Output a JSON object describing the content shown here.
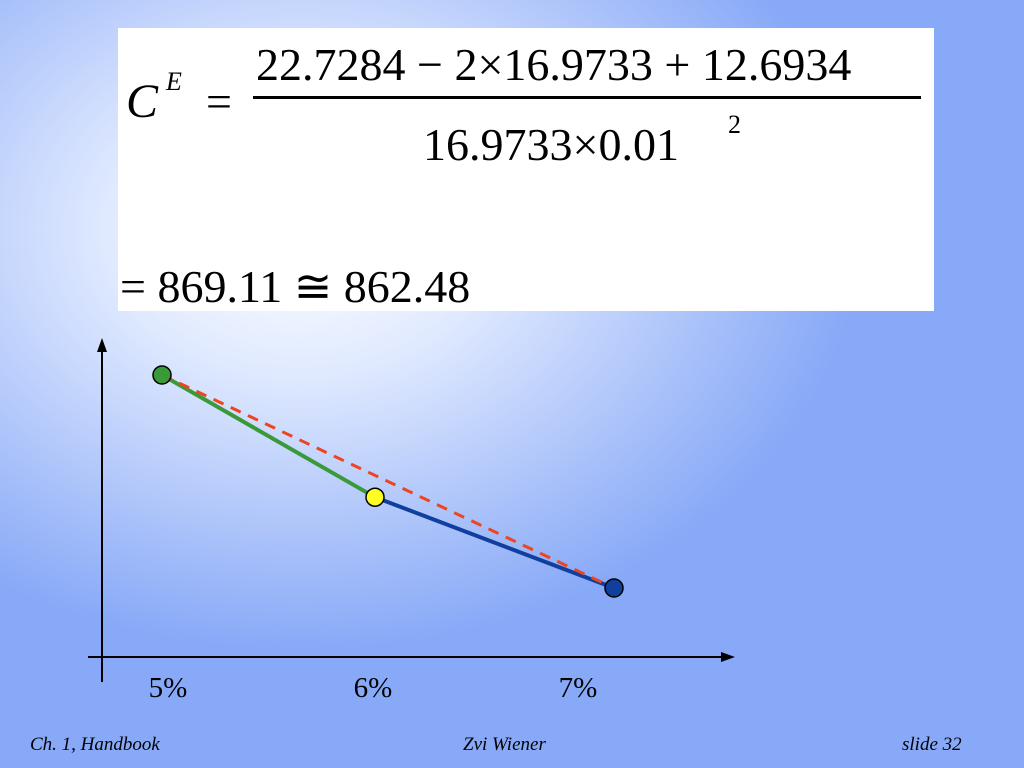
{
  "formula": {
    "lhs_symbol": "C",
    "lhs_superscript": "E",
    "equals": "=",
    "numerator": "22.7284 − 2×16.9733 + 12.6934",
    "denominator": "16.9733×0.01",
    "denominator_exponent": "2",
    "result_line": "= 869.11 ≅ 862.48"
  },
  "chart_data": {
    "type": "line",
    "categories": [
      "5%",
      "6%",
      "7%"
    ],
    "title": "",
    "xlabel": "",
    "ylabel": "",
    "series": [
      {
        "values": [
          22.7284,
          16.9733
        ],
        "x": [
          "5%",
          "6%"
        ],
        "color": "#3a9a3a",
        "style": "solid"
      },
      {
        "values": [
          16.9733,
          12.6934
        ],
        "x": [
          "6%",
          "7%"
        ],
        "color": "#103f9e",
        "style": "solid"
      },
      {
        "values": [
          22.7284,
          12.6934
        ],
        "x": [
          "5%",
          "7%"
        ],
        "color": "#ee4422",
        "style": "dashed"
      }
    ],
    "points": [
      {
        "x": "5%",
        "y": 22.7284,
        "color": "#3a9a3a"
      },
      {
        "x": "6%",
        "y": 16.9733,
        "color": "#ffff22"
      },
      {
        "x": "7%",
        "y": 12.6934,
        "color": "#103f9e"
      }
    ],
    "grid": false,
    "legend": "none"
  },
  "footer": {
    "left": "Ch. 1, Handbook",
    "center": "Zvi Wiener",
    "right": "slide 32"
  }
}
